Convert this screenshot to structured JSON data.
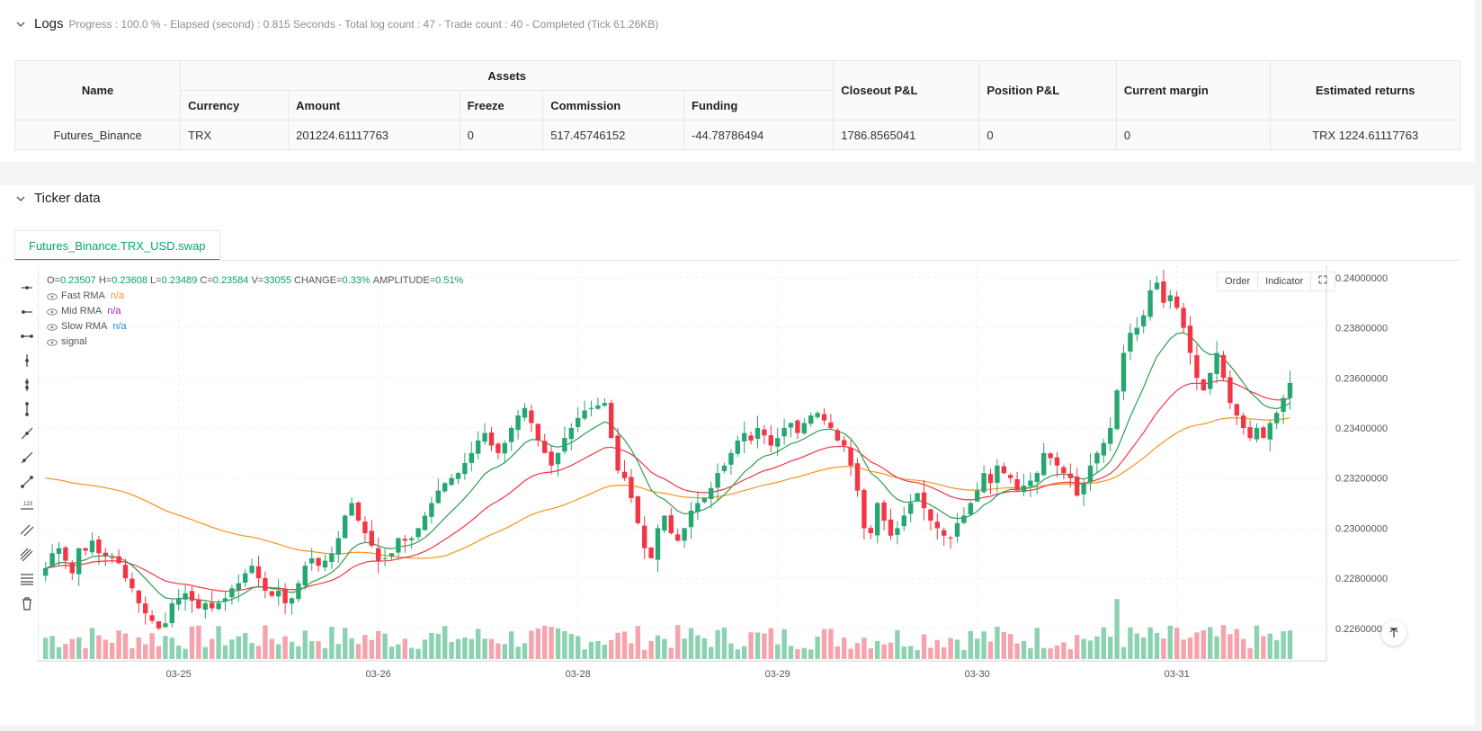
{
  "logs": {
    "title": "Logs",
    "summary": "Progress : 100.0 % - Elapsed (second) : 0.815  Seconds - Total log count : 47 - Trade count : 40 - Completed (Tick 61.26KB)"
  },
  "assets_table": {
    "headers": {
      "name": "Name",
      "assets": "Assets",
      "currency": "Currency",
      "amount": "Amount",
      "freeze": "Freeze",
      "commission": "Commission",
      "funding": "Funding",
      "closeout": "Closeout P&L",
      "position": "Position P&L",
      "margin": "Current margin",
      "returns": "Estimated returns"
    },
    "row": {
      "name": "Futures_Binance",
      "currency": "TRX",
      "amount": "201224.61117763",
      "freeze": "0",
      "commission": "517.45746152",
      "funding": "-44.78786494",
      "closeout": "1786.8565041",
      "position": "0",
      "margin": "0",
      "returns": "TRX 1224.61117763"
    }
  },
  "ticker": {
    "title": "Ticker data",
    "tab": "Futures_Binance.TRX_USD.swap",
    "buttons": {
      "order": "Order",
      "indicator": "Indicator"
    },
    "ohlc": {
      "o_label": "O=",
      "o": "0.23507",
      "h_label": "H=",
      "h": "0.23608",
      "l_label": "L=",
      "l": "0.23489",
      "c_label": "C=",
      "c": "0.23584",
      "v_label": "V=",
      "v": "33055",
      "change_label": "CHANGE=",
      "change": "0.33%",
      "amp_label": "AMPLITUDE=",
      "amp": "0.51%"
    },
    "legend": [
      {
        "name": "Fast RMA",
        "value": "n/a",
        "color": "#f7931a"
      },
      {
        "name": "Mid RMA",
        "value": "n/a",
        "color": "#9c27b0"
      },
      {
        "name": "Slow RMA",
        "value": "n/a",
        "color": "#1e88e5"
      },
      {
        "name": "signal",
        "value": ""
      }
    ],
    "icons": [
      "horizontal-line-icon",
      "horizontal-ray-icon",
      "horizontal-segment-icon",
      "vertical-line-icon",
      "vertical-ray-icon",
      "vertical-segment-icon",
      "trend-line-icon",
      "ray-icon",
      "extended-line-icon",
      "price-label-icon",
      "parallel-channel-icon",
      "pitchfork-icon",
      "fib-retracement-icon",
      "trash-icon"
    ]
  },
  "chart_data": {
    "type": "candlestick",
    "y_ticks": [
      "0.24000000",
      "0.23800000",
      "0.23600000",
      "0.23400000",
      "0.23200000",
      "0.23000000",
      "0.22800000",
      "0.22600000"
    ],
    "ylim": [
      0.2247,
      0.2405
    ],
    "x_ticks": [
      "03-25",
      "03-26",
      "03-28",
      "03-29",
      "03-30",
      "03-31"
    ],
    "x_tick_index": [
      20,
      50,
      80,
      110,
      140,
      170
    ],
    "up_color": "#26a671",
    "down_color": "#f23645",
    "closes": [
      0.2284,
      0.229,
      0.2292,
      0.2287,
      0.2282,
      0.2292,
      0.2291,
      0.2295,
      0.229,
      0.2289,
      0.2288,
      0.2286,
      0.228,
      0.2276,
      0.227,
      0.2266,
      0.2263,
      0.226,
      0.2262,
      0.227,
      0.2272,
      0.2274,
      0.2271,
      0.2268,
      0.227,
      0.2268,
      0.227,
      0.2272,
      0.2276,
      0.2278,
      0.2282,
      0.2285,
      0.228,
      0.2275,
      0.2273,
      0.2275,
      0.227,
      0.2272,
      0.2278,
      0.2285,
      0.2288,
      0.2285,
      0.2287,
      0.229,
      0.2296,
      0.2305,
      0.231,
      0.2303,
      0.2298,
      0.2293,
      0.2287,
      0.2288,
      0.229,
      0.2296,
      0.2295,
      0.2296,
      0.23,
      0.2305,
      0.231,
      0.2315,
      0.2318,
      0.232,
      0.2322,
      0.2326,
      0.233,
      0.2335,
      0.2338,
      0.2333,
      0.233,
      0.2334,
      0.234,
      0.2345,
      0.2348,
      0.2342,
      0.2335,
      0.233,
      0.2325,
      0.233,
      0.2336,
      0.234,
      0.2344,
      0.2347,
      0.2348,
      0.2349,
      0.235,
      0.2336,
      0.2323,
      0.232,
      0.2312,
      0.2302,
      0.2292,
      0.2288,
      0.23,
      0.2305,
      0.2298,
      0.2295,
      0.23,
      0.2307,
      0.231,
      0.2312,
      0.2316,
      0.2322,
      0.2325,
      0.233,
      0.2335,
      0.2338,
      0.2335,
      0.234,
      0.2337,
      0.2333,
      0.2336,
      0.234,
      0.2342,
      0.2338,
      0.2342,
      0.2345,
      0.2346,
      0.2343,
      0.234,
      0.2335,
      0.2333,
      0.2325,
      0.2315,
      0.23,
      0.2298,
      0.231,
      0.2303,
      0.2297,
      0.23,
      0.2305,
      0.231,
      0.2314,
      0.2308,
      0.2303,
      0.23,
      0.2297,
      0.2296,
      0.2302,
      0.2305,
      0.231,
      0.2315,
      0.2322,
      0.2318,
      0.2325,
      0.2322,
      0.232,
      0.2315,
      0.2317,
      0.2319,
      0.2322,
      0.233,
      0.2328,
      0.2325,
      0.2322,
      0.232,
      0.2313,
      0.2318,
      0.2325,
      0.233,
      0.2334,
      0.234,
      0.2355,
      0.237,
      0.2378,
      0.238,
      0.2385,
      0.2395,
      0.2398,
      0.239,
      0.2393,
      0.2388,
      0.238,
      0.237,
      0.236,
      0.2355,
      0.2362,
      0.237,
      0.236,
      0.235,
      0.2345,
      0.234,
      0.2336,
      0.234,
      0.2336,
      0.2342,
      0.2346,
      0.2352,
      0.2358
    ]
  }
}
